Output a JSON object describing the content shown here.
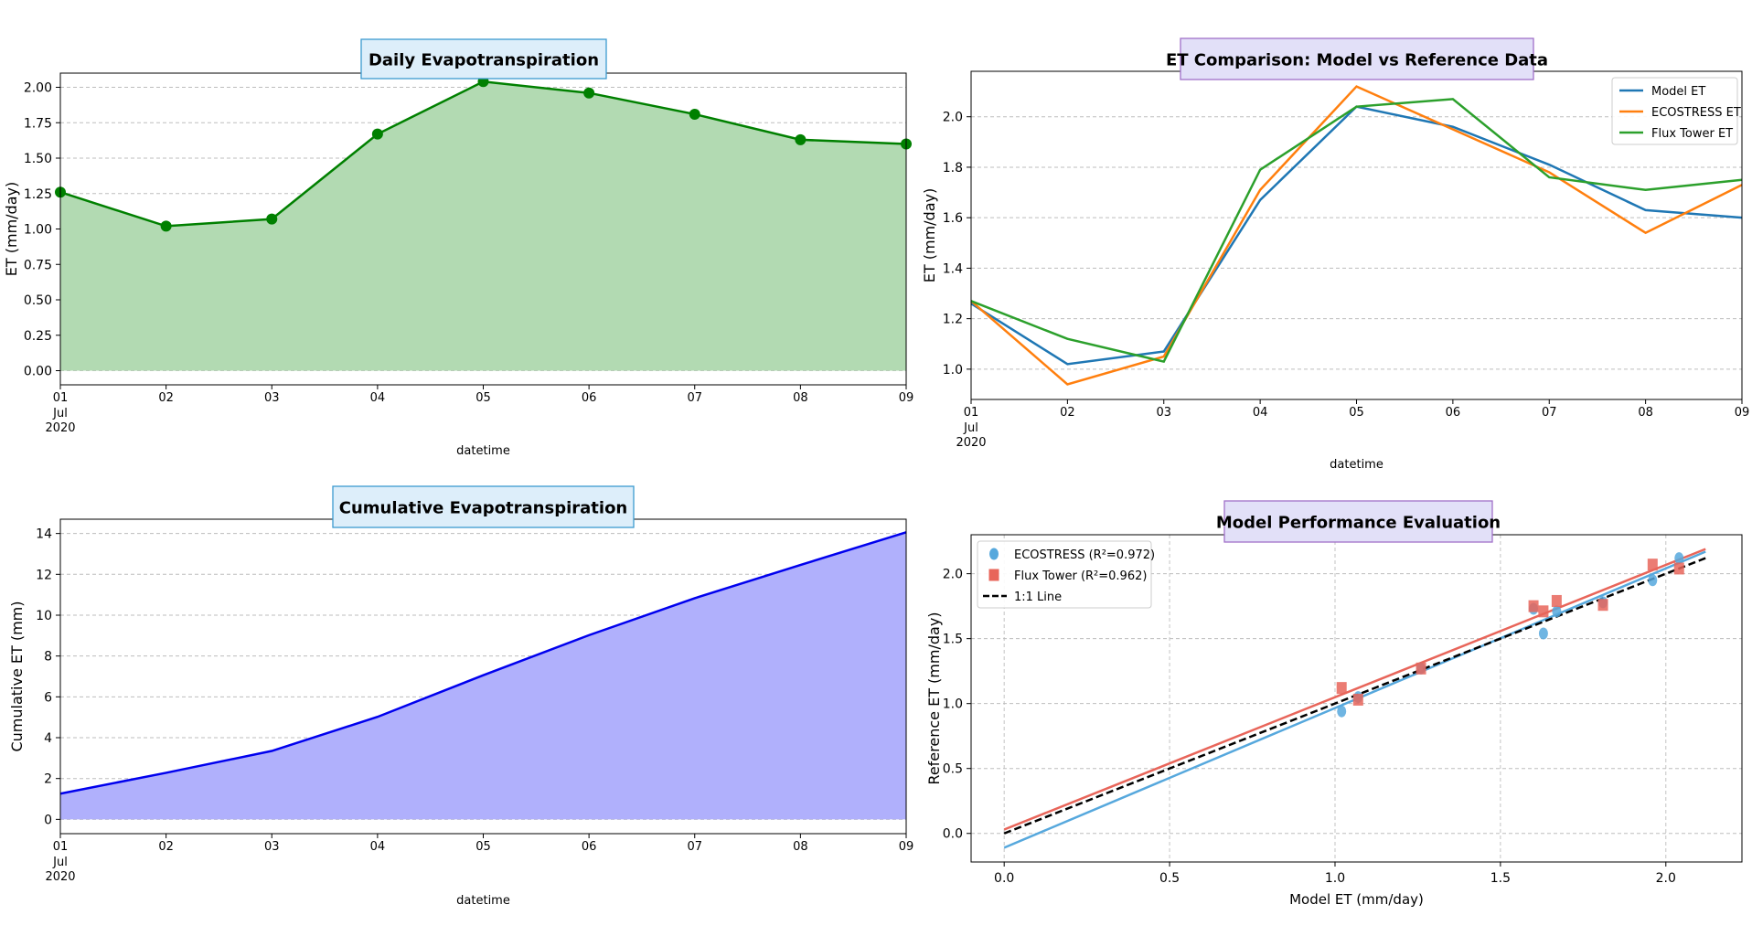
{
  "colors": {
    "daily_line": "#008000",
    "daily_fill": "#b2dab2",
    "cumulative_line": "#0000ee",
    "cumulative_fill": "#b0b0fc",
    "model": "#1f77b4",
    "ecostress": "#ff7f0e",
    "flux": "#2ca02c",
    "scatter_ecostress": "#56a8dd",
    "scatter_flux": "#e8655a",
    "title_box_blue_fill": "#ddeefa",
    "title_box_blue_edge": "#3b9ad0",
    "title_box_purple_fill": "#e2e0f8",
    "title_box_purple_edge": "#a070c8"
  },
  "chart_data": [
    {
      "type": "area",
      "title": "Daily Evapotranspiration",
      "xlabel": "datetime",
      "ylabel": "ET (mm/day)",
      "x": [
        "01",
        "02",
        "03",
        "04",
        "05",
        "06",
        "07",
        "08",
        "09"
      ],
      "x_sublabel": [
        "Jul",
        "2020"
      ],
      "series": [
        {
          "values": [
            1.26,
            1.02,
            1.07,
            1.67,
            2.04,
            1.96,
            1.81,
            1.63,
            1.6
          ]
        }
      ],
      "ylim": [
        -0.1,
        2.1
      ],
      "yticks": [
        "0.00",
        "0.25",
        "0.50",
        "0.75",
        "1.00",
        "1.25",
        "1.50",
        "1.75",
        "2.00"
      ],
      "markers": true,
      "grid": "horizontal dashed"
    },
    {
      "type": "line",
      "title": "ET Comparison: Model vs Reference Data",
      "xlabel": "datetime",
      "ylabel": "ET (mm/day)",
      "x": [
        "01",
        "02",
        "03",
        "04",
        "05",
        "06",
        "07",
        "08",
        "09"
      ],
      "x_sublabel": [
        "Jul",
        "2020"
      ],
      "series": [
        {
          "name": "Model ET",
          "values": [
            1.26,
            1.02,
            1.07,
            1.67,
            2.04,
            1.96,
            1.81,
            1.63,
            1.6
          ]
        },
        {
          "name": "ECOSTRESS ET",
          "values": [
            1.27,
            0.94,
            1.05,
            1.71,
            2.12,
            1.95,
            1.78,
            1.54,
            1.73
          ]
        },
        {
          "name": "Flux Tower ET",
          "values": [
            1.27,
            1.12,
            1.03,
            1.79,
            2.04,
            2.07,
            1.76,
            1.71,
            1.75
          ]
        }
      ],
      "ylim": [
        0.88,
        2.18
      ],
      "yticks": [
        "1.0",
        "1.2",
        "1.4",
        "1.6",
        "1.8",
        "2.0"
      ],
      "legend": "top-right",
      "grid": "horizontal dashed"
    },
    {
      "type": "area",
      "title": "Cumulative Evapotranspiration",
      "xlabel": "datetime",
      "ylabel": "Cumulative ET (mm)",
      "x": [
        "01",
        "02",
        "03",
        "04",
        "05",
        "06",
        "07",
        "08",
        "09"
      ],
      "x_sublabel": [
        "Jul",
        "2020"
      ],
      "series": [
        {
          "values": [
            1.26,
            2.28,
            3.35,
            5.02,
            7.06,
            9.02,
            10.83,
            12.46,
            14.06
          ]
        }
      ],
      "ylim": [
        -0.7,
        14.7
      ],
      "yticks": [
        "0",
        "2",
        "4",
        "6",
        "8",
        "10",
        "12",
        "14"
      ],
      "grid": "horizontal dashed"
    },
    {
      "type": "scatter",
      "title": "Model Performance Evaluation",
      "xlabel": "Model ET (mm/day)",
      "ylabel": "Reference ET (mm/day)",
      "xticks": [
        "0.0",
        "0.5",
        "1.0",
        "1.5",
        "2.0"
      ],
      "yticks": [
        "0.0",
        "0.5",
        "1.0",
        "1.5",
        "2.0"
      ],
      "xlim": [
        -0.1,
        2.23
      ],
      "ylim": [
        -0.22,
        2.3
      ],
      "series": [
        {
          "name": "ECOSTRESS (R²=0.972)",
          "marker": "circle",
          "points": [
            [
              1.26,
              1.27
            ],
            [
              1.02,
              0.94
            ],
            [
              1.07,
              1.05
            ],
            [
              1.67,
              1.71
            ],
            [
              2.04,
              2.12
            ],
            [
              1.96,
              1.95
            ],
            [
              1.81,
              1.78
            ],
            [
              1.63,
              1.54
            ],
            [
              1.6,
              1.73
            ]
          ],
          "fit": [
            [
              0.0,
              -0.11
            ],
            [
              2.12,
              2.17
            ]
          ]
        },
        {
          "name": "Flux Tower (R²=0.962)",
          "marker": "square",
          "points": [
            [
              1.26,
              1.27
            ],
            [
              1.02,
              1.12
            ],
            [
              1.07,
              1.03
            ],
            [
              1.67,
              1.79
            ],
            [
              2.04,
              2.04
            ],
            [
              1.96,
              2.07
            ],
            [
              1.81,
              1.76
            ],
            [
              1.63,
              1.71
            ],
            [
              1.6,
              1.75
            ]
          ],
          "fit": [
            [
              0.0,
              0.03
            ],
            [
              2.12,
              2.19
            ]
          ]
        },
        {
          "name": "1:1 Line",
          "marker": "dashed-line",
          "points": [
            [
              0.0,
              0.0
            ],
            [
              2.12,
              2.12
            ]
          ]
        }
      ],
      "legend": "top-left",
      "grid": "both dashed"
    }
  ]
}
